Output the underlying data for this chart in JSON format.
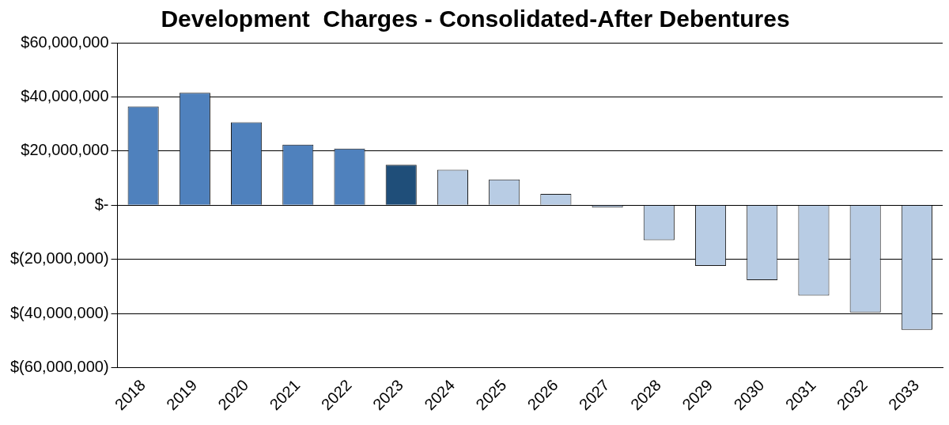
{
  "chart_data": {
    "type": "bar",
    "title": "Development  Charges - Consolidated-After Debentures",
    "categories": [
      "2018",
      "2019",
      "2020",
      "2021",
      "2022",
      "2023",
      "2024",
      "2025",
      "2026",
      "2027",
      "2028",
      "2029",
      "2030",
      "2031",
      "2032",
      "2033"
    ],
    "values": [
      36500000,
      41500000,
      30600000,
      22400000,
      20900000,
      14900000,
      13100000,
      9500000,
      4200000,
      -900000,
      -12900000,
      -22400000,
      -27700000,
      -33400000,
      -39600000,
      -46000000
    ],
    "colors": [
      "#4f81bd",
      "#4f81bd",
      "#4f81bd",
      "#4f81bd",
      "#4f81bd",
      "#1f4e79",
      "#b8cce4",
      "#b8cce4",
      "#b8cce4",
      "#b8cce4",
      "#b8cce4",
      "#b8cce4",
      "#b8cce4",
      "#b8cce4",
      "#b8cce4",
      "#b8cce4"
    ],
    "ylim": [
      -60000000,
      60000000
    ],
    "yticks": [
      {
        "value": -60000000,
        "label": "$(60,000,000)"
      },
      {
        "value": -40000000,
        "label": "$(40,000,000)"
      },
      {
        "value": -20000000,
        "label": "$(20,000,000)"
      },
      {
        "value": 0,
        "label": "$-"
      },
      {
        "value": 20000000,
        "label": "$20,000,000"
      },
      {
        "value": 40000000,
        "label": "$40,000,000"
      },
      {
        "value": 60000000,
        "label": "$60,000,000"
      }
    ],
    "grid": "y"
  }
}
